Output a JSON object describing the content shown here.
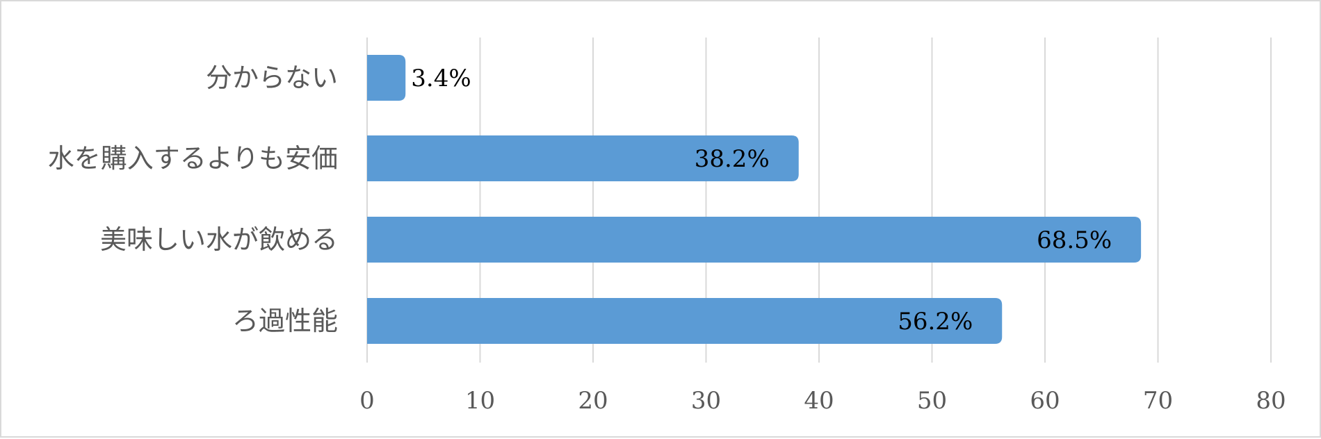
{
  "chart_data": {
    "type": "bar",
    "orientation": "horizontal",
    "categories": [
      "分からない",
      "水を購入するよりも安価",
      "美味しい水が飲める",
      "ろ過性能"
    ],
    "values": [
      3.4,
      38.2,
      68.5,
      56.2
    ],
    "value_labels": [
      "3.4%",
      "38.2%",
      "68.5%",
      "56.2%"
    ],
    "xlim": [
      0,
      80
    ],
    "x_ticks": [
      0,
      10,
      20,
      30,
      40,
      50,
      60,
      70,
      80
    ],
    "x_tick_labels": [
      "0",
      "10",
      "20",
      "30",
      "40",
      "50",
      "60",
      "70",
      "80"
    ],
    "title": "",
    "xlabel": "",
    "ylabel": "",
    "grid": true,
    "legend": "none",
    "bar_color": "#5b9bd5"
  }
}
